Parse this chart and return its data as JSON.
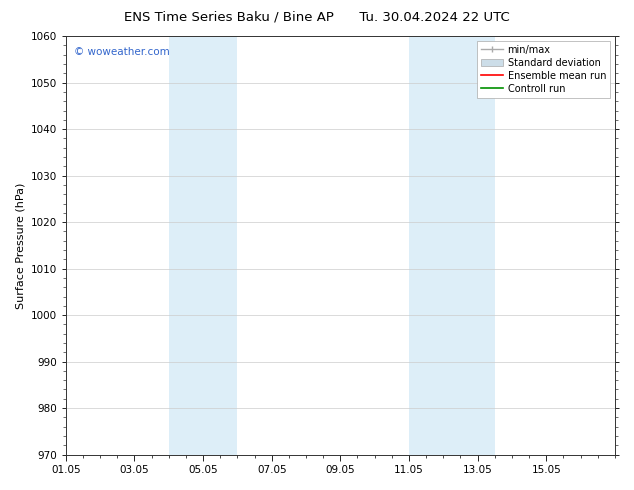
{
  "title_left": "ENS Time Series Baku / Bine AP",
  "title_right": "Tu. 30.04.2024 22 UTC",
  "ylabel": "Surface Pressure (hPa)",
  "xlim_min": 0,
  "xlim_max": 16,
  "ylim_min": 970,
  "ylim_max": 1060,
  "yticks": [
    970,
    980,
    990,
    1000,
    1010,
    1020,
    1030,
    1040,
    1050,
    1060
  ],
  "xtick_labels": [
    "01.05",
    "03.05",
    "05.05",
    "07.05",
    "09.05",
    "11.05",
    "13.05",
    "15.05"
  ],
  "xtick_positions": [
    0,
    2,
    4,
    6,
    8,
    10,
    12,
    14
  ],
  "shaded_bands": [
    {
      "x_start": 3.0,
      "x_end": 5.0
    },
    {
      "x_start": 10.0,
      "x_end": 12.5
    }
  ],
  "shaded_color": "#ddeef8",
  "background_color": "#ffffff",
  "plot_bg_color": "#ffffff",
  "grid_color": "#cccccc",
  "watermark_text": "© woweather.com",
  "watermark_color": "#3366cc",
  "title_fontsize": 9.5,
  "axis_label_fontsize": 8,
  "tick_fontsize": 7.5,
  "legend_fontsize": 7,
  "legend_handle_colors": [
    "#aaaaaa",
    "#ccdde8",
    "#ff0000",
    "#009000"
  ],
  "legend_labels": [
    "min/max",
    "Standard deviation",
    "Ensemble mean run",
    "Controll run"
  ]
}
